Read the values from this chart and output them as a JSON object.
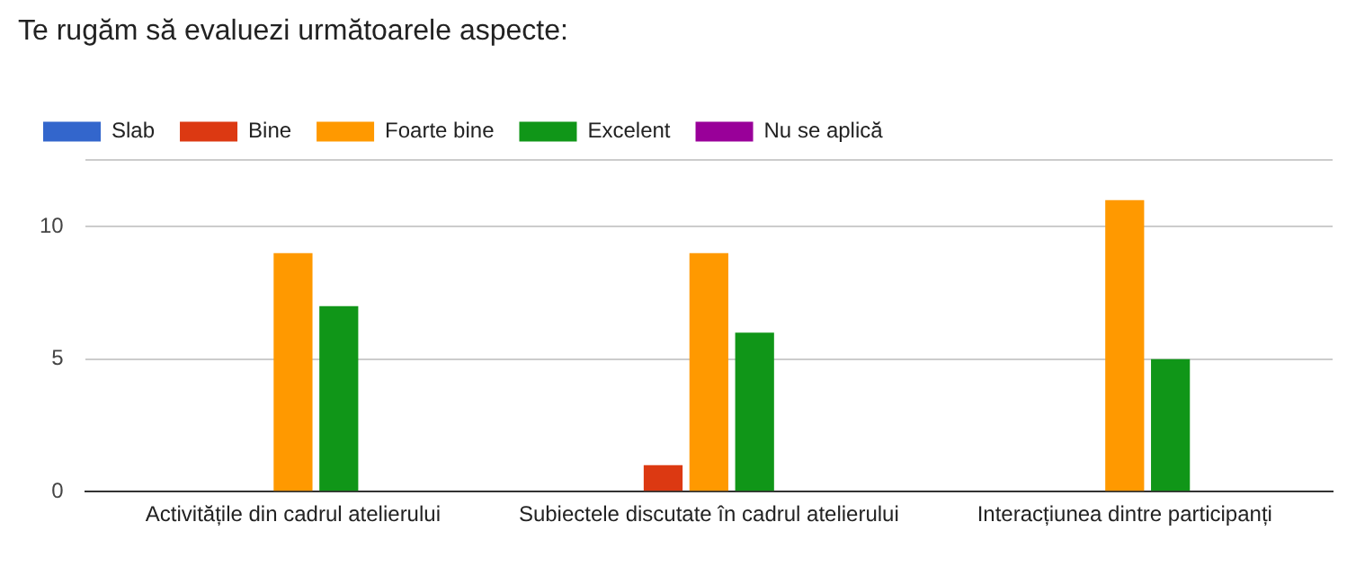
{
  "chart_data": {
    "type": "bar",
    "title": "Te rugăm să evaluezi următoarele aspecte:",
    "categories": [
      "Activitățile din cadrul atelierului",
      "Subiectele discutate în cadrul atelierului",
      "Interacțiunea dintre participanți"
    ],
    "series": [
      {
        "name": "Slab",
        "color": "#3366cc",
        "values": [
          0,
          0,
          0
        ]
      },
      {
        "name": "Bine",
        "color": "#dc3912",
        "values": [
          0,
          1,
          0
        ]
      },
      {
        "name": "Foarte bine",
        "color": "#ff9900",
        "values": [
          9,
          9,
          11
        ]
      },
      {
        "name": "Excelent",
        "color": "#109618",
        "values": [
          7,
          6,
          5
        ]
      },
      {
        "name": "Nu se aplică",
        "color": "#990099",
        "values": [
          0,
          0,
          0
        ]
      }
    ],
    "ylim": [
      0,
      12.5
    ],
    "yticks": [
      0,
      5,
      10,
      {
        "value": 12.5,
        "label": null
      }
    ],
    "grid": "y",
    "legend": "top left"
  }
}
